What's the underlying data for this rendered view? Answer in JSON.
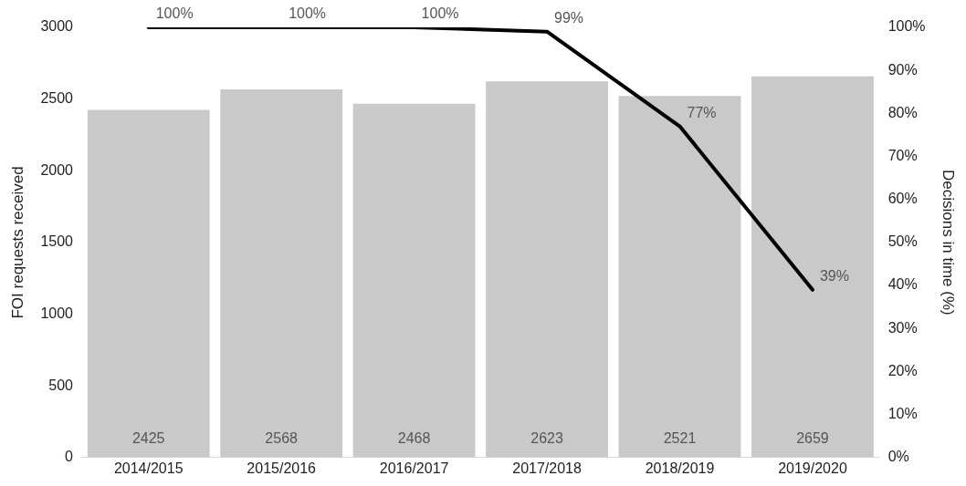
{
  "chart_data": {
    "type": "bar",
    "categories": [
      "2014/2015",
      "2015/2016",
      "2016/2017",
      "2017/2018",
      "2018/2019",
      "2019/2020"
    ],
    "ylabel": "FOI requests received",
    "y2label": "Decisions in time (%)",
    "ylim": [
      0,
      3000
    ],
    "yticks": [
      0,
      500,
      1000,
      1500,
      2000,
      2500,
      3000
    ],
    "y2lim": [
      0,
      100
    ],
    "y2ticks": [
      {
        "value": 0,
        "label": "0%"
      },
      {
        "value": 10,
        "label": "10%"
      },
      {
        "value": 20,
        "label": "20%"
      },
      {
        "value": 30,
        "label": "30%"
      },
      {
        "value": 40,
        "label": "40%"
      },
      {
        "value": 50,
        "label": "50%"
      },
      {
        "value": 60,
        "label": "60%"
      },
      {
        "value": 70,
        "label": "70%"
      },
      {
        "value": 80,
        "label": "80%"
      },
      {
        "value": 90,
        "label": "90%"
      },
      {
        "value": 100,
        "label": "100%"
      }
    ],
    "series": [
      {
        "color": "#c9c9c9",
        "values": [
          2425,
          2568,
          2468,
          2623,
          2521,
          2659
        ],
        "value_labels": [
          "2425",
          "2568",
          "2468",
          "2623",
          "2521",
          "2659"
        ]
      },
      {
        "type": "line",
        "axis": "y2",
        "color": "#000000",
        "values": [
          100,
          100,
          100,
          99,
          77,
          39
        ],
        "value_labels": [
          "100%",
          "100%",
          "100%",
          "99%",
          "77%",
          "39%"
        ]
      }
    ],
    "grid": false,
    "legend": false,
    "marker": "none",
    "line_style": "solid"
  }
}
